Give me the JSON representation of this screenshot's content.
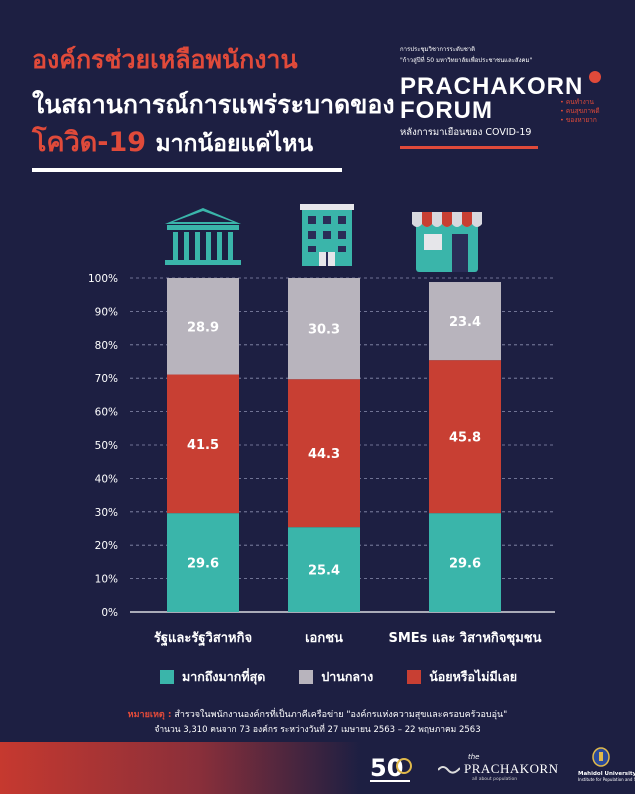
{
  "header": {
    "title_line1": "องค์กรช่วยเหลือพนักงาน",
    "title_line2": "ในสถานการณ์การแพร่ระบาดของ",
    "title_line3_highlight": "โควิด-19",
    "title_line3_rest": "มากน้อยแค่ไหน"
  },
  "brand": {
    "pre_line1": "การประชุมวิชาการระดับชาติ",
    "pre_line2": "\"ก้าวสู่ปีที่ 50 มหาวิทยาลัยเพื่อประชาชนและสังคม\"",
    "name_line1": "PRACHAKORN",
    "name_line2": "FORUM",
    "tags": [
      "• คนทำงาน",
      "• คนสุขภาพดี",
      "• ของหายาก"
    ],
    "subtitle": "หลังการมาเยือนของ COVID-19"
  },
  "colors": {
    "background": "#1d1f42",
    "accent_red": "#e04a3a",
    "teal": "#3ab5aa",
    "grey": "#b8b4bd",
    "red": "#c83f33"
  },
  "icons": [
    "government-building-icon",
    "office-tower-icon",
    "shopfront-icon"
  ],
  "chart_data": {
    "type": "bar",
    "stacked": true,
    "categories": [
      "รัฐและรัฐวิสาหกิจ",
      "เอกชน",
      "SMEs และ วิสาหกิจชุมชน"
    ],
    "series": [
      {
        "name": "มากถึงมากที่สุด",
        "color": "#3ab5aa",
        "values": [
          29.6,
          25.4,
          29.6
        ]
      },
      {
        "name": "น้อยหรือไม่มีเลย",
        "color": "#c83f33",
        "values": [
          41.5,
          44.3,
          45.8
        ]
      },
      {
        "name": "ปานกลาง",
        "color": "#b8b4bd",
        "values": [
          28.9,
          30.3,
          23.4
        ]
      }
    ],
    "ylim": [
      0,
      100
    ],
    "yticks": [
      "0%",
      "10%",
      "20%",
      "30%",
      "40%",
      "50%",
      "60%",
      "70%",
      "80%",
      "90%",
      "100%"
    ],
    "grid": true
  },
  "legend": [
    {
      "label": "มากถึงมากที่สุด",
      "color": "#3ab5aa"
    },
    {
      "label": "ปานกลาง",
      "color": "#b8b4bd"
    },
    {
      "label": "น้อยหรือไม่มีเลย",
      "color": "#c83f33"
    }
  ],
  "notes": {
    "label": "หมายเหตุ :",
    "line1": "สำรวจในพนักงานองค์กรที่เป็นภาคีเครือข่าย \"องค์กรแห่งความสุขและครอบครัวอบอุ่น\"",
    "line2": "จำนวน 3,310 คนจาก 73 องค์กร ระหว่างวันที่ 27 เมษายน 2563 – 22 พฤษภาคม 2563"
  },
  "footer": {
    "logo1_number": "50",
    "logo2_the": "the",
    "logo2_name": "PRACHAKORN",
    "logo2_tag": "all about population",
    "logo3_line1": "Mahidol University",
    "logo3_line2": "Institute for Population and Social Research"
  }
}
